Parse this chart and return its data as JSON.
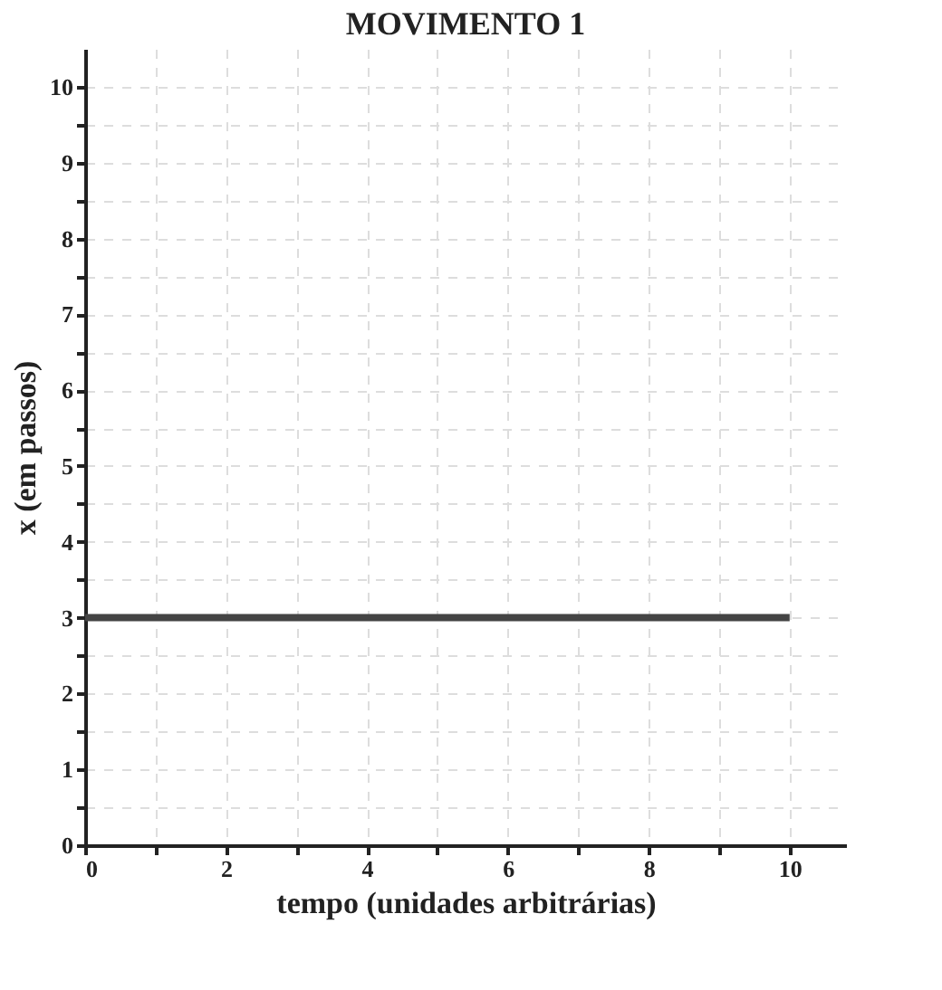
{
  "chart_data": {
    "type": "line",
    "title": "MOVIMENTO 1",
    "xlabel": "tempo (unidades arbitrárias)",
    "ylabel": "x (em passos)",
    "x": [
      0,
      10
    ],
    "series": [
      {
        "color": "#444444",
        "values": [
          3,
          3
        ]
      }
    ],
    "xlim": [
      0,
      10.8
    ],
    "ylim": [
      0,
      10.5
    ],
    "xticks": [
      0,
      {
        "value": 1,
        "label": null
      },
      2,
      {
        "value": 3,
        "label": null
      },
      4,
      {
        "value": 5,
        "label": null
      },
      6,
      {
        "value": 7,
        "label": null
      },
      8,
      {
        "value": 9,
        "label": null
      },
      10
    ],
    "yticks": [
      0,
      {
        "value": 0.5,
        "label": null
      },
      1,
      {
        "value": 1.5,
        "label": null
      },
      2,
      {
        "value": 2.5,
        "label": null
      },
      3,
      {
        "value": 3.5,
        "label": null
      },
      4,
      {
        "value": 4.5,
        "label": null
      },
      5,
      {
        "value": 5.5,
        "label": null
      },
      6,
      {
        "value": 6.5,
        "label": null
      },
      7,
      {
        "value": 7.5,
        "label": null
      },
      8,
      {
        "value": 8.5,
        "label": null
      },
      9,
      {
        "value": 9.5,
        "label": null
      },
      10
    ],
    "grid": true,
    "marker": "none",
    "line_style": "solid"
  }
}
